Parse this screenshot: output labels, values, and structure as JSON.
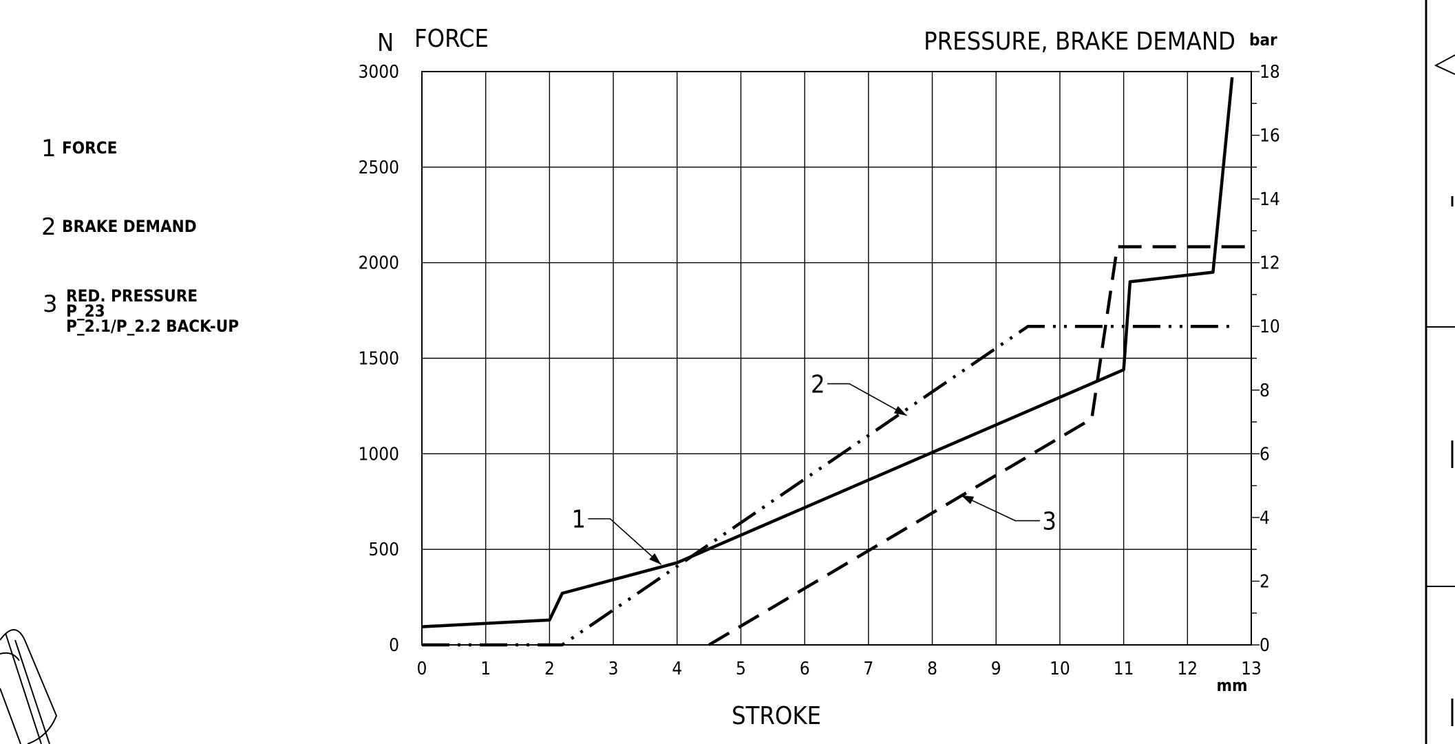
{
  "legend": [
    {
      "num": "1",
      "label": "FORCE"
    },
    {
      "num": "2",
      "label": "BRAKE DEMAND"
    },
    {
      "num": "3",
      "lines": [
        "RED. PRESSURE",
        "P_23",
        "P_2.1/P_2.2 BACK-UP"
      ]
    }
  ],
  "chart_data": {
    "type": "line",
    "title_left": "FORCE",
    "title_right": "PRESSURE, BRAKE DEMAND",
    "xlabel": "STROKE",
    "x_unit": "mm",
    "y_unit_left": "N",
    "y_unit_right": "bar",
    "xlim": [
      0,
      13
    ],
    "ylim_left": [
      0,
      3000
    ],
    "ylim_right": [
      0,
      18
    ],
    "x_ticks": [
      "0",
      "1",
      "2",
      "3",
      "4",
      "5",
      "6",
      "7",
      "8",
      "9",
      "10",
      "11",
      "12",
      "13"
    ],
    "y_ticks_left": [
      "0",
      "500",
      "1000",
      "1500",
      "2000",
      "2500",
      "3000"
    ],
    "y_ticks_right": [
      "0",
      "2",
      "4",
      "6",
      "8",
      "10",
      "12",
      "14",
      "16",
      "18"
    ],
    "grid": true,
    "series": [
      {
        "label": "1",
        "axis": "left",
        "style": "solid",
        "x": [
          0,
          2.0,
          2.2,
          4.0,
          11.0,
          11.1,
          12.4,
          12.7
        ],
        "y": [
          95,
          130,
          270,
          430,
          1440,
          1900,
          1950,
          2970
        ]
      },
      {
        "label": "2",
        "axis": "right",
        "style": "dash-dot",
        "x": [
          0,
          2.2,
          9.5,
          12.7
        ],
        "y": [
          0,
          0,
          10,
          10
        ]
      },
      {
        "label": "3",
        "axis": "right",
        "style": "dashed",
        "x": [
          4.5,
          10.5,
          10.9,
          13.0
        ],
        "y": [
          0,
          7.1,
          12.5,
          12.5
        ]
      }
    ],
    "callouts": [
      {
        "label": "1"
      },
      {
        "label": "2"
      },
      {
        "label": "3"
      }
    ]
  }
}
